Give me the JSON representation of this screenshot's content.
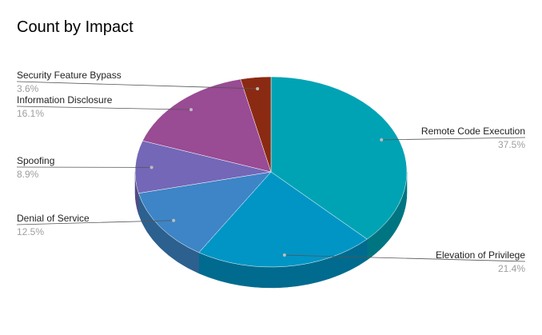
{
  "chart_data": {
    "type": "pie",
    "title": "Count by Impact",
    "slices": [
      {
        "label": "Remote Code Execution",
        "value": 37.5,
        "percent_label": "37.5%",
        "color": "#00A3B4"
      },
      {
        "label": "Elevation of Privilege",
        "value": 21.4,
        "percent_label": "21.4%",
        "color": "#0095C5"
      },
      {
        "label": "Denial of Service",
        "value": 12.5,
        "percent_label": "12.5%",
        "color": "#3D85C6"
      },
      {
        "label": "Spoofing",
        "value": 8.9,
        "percent_label": "8.9%",
        "color": "#7467B7"
      },
      {
        "label": "Information Disclosure",
        "value": 16.1,
        "percent_label": "16.1%",
        "color": "#994B94"
      },
      {
        "label": "Security Feature Bypass",
        "value": 3.6,
        "percent_label": "3.6%",
        "color": "#8B2A12"
      }
    ],
    "style": "3d",
    "legend": "none",
    "data_labels": "outside, with leader lines"
  }
}
